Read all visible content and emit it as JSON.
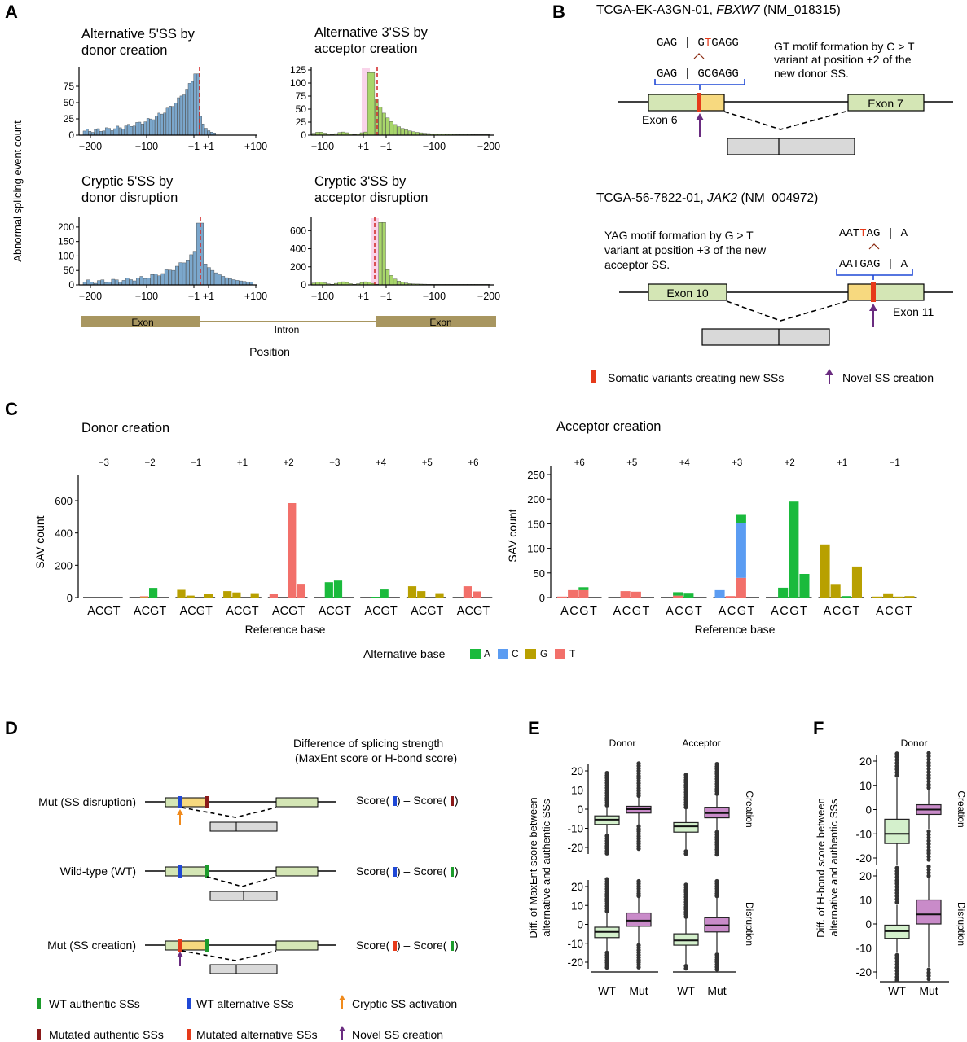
{
  "panels": {
    "A": "A",
    "B": "B",
    "C": "C",
    "D": "D",
    "E": "E",
    "F": "F"
  },
  "colors": {
    "hist_blue": "#7ba7cc",
    "hist_green": "#a8d66a",
    "pink": "#f9d4ea",
    "dash_red": "#d32f2f",
    "exon_tan": "#a89660",
    "exon_green": "#d4e6b5",
    "exon_yellow": "#f7d97f",
    "gray_box": "#d9d9d9",
    "A": "#1aba3c",
    "C": "#5b9cf2",
    "G": "#b8a000",
    "T": "#f2706a",
    "box_wt": "#d4f0cc",
    "box_mut": "#c98bc9",
    "purple": "#6a2c80",
    "orange": "#f08a1c",
    "blue": "#1f48d6",
    "green": "#1c9b2b",
    "darkred": "#8a1a1a",
    "red": "#e63a1a"
  },
  "panel_A": {
    "ylabel": "Abnormal splicing event count",
    "xlabel": "Position",
    "exon_label": "Exon",
    "intron_label": "Intron",
    "charts": [
      {
        "title1": "Alternative 5'SS by",
        "title2": "donor creation",
        "yticks": [
          "0",
          "25",
          "50",
          "75"
        ],
        "xticks": [
          "−200",
          "−100",
          "−1",
          "+1",
          "+100"
        ]
      },
      {
        "title1": "Alternative 3'SS by",
        "title2": "acceptor creation",
        "yticks": [
          "0",
          "25",
          "50",
          "75",
          "100",
          "125"
        ],
        "xticks": [
          "+100",
          "+1",
          "−1",
          "−100",
          "−200"
        ]
      },
      {
        "title1": "Cryptic 5'SS by",
        "title2": "donor disruption",
        "yticks": [
          "0",
          "50",
          "100",
          "150",
          "200"
        ],
        "xticks": [
          "−200",
          "−100",
          "−1",
          "+1",
          "+100"
        ]
      },
      {
        "title1": "Cryptic 3'SS by",
        "title2": "acceptor disruption",
        "yticks": [
          "0",
          "200",
          "400",
          "600"
        ],
        "xticks": [
          "+100",
          "+1",
          "−1",
          "−100",
          "−200"
        ]
      }
    ]
  },
  "panel_B": {
    "case1_prefix": "TCGA-EK-A3GN-01, ",
    "case1_gene": "FBXW7",
    "case1_suffix": " (NM_018315)",
    "seq1_mut_a": "GAG | G",
    "seq1_mut_b": "T",
    "seq1_mut_c": "GAGG",
    "seq1_wt": "GAG | GCGAGG",
    "note1_l1": "GT motif formation by C > T",
    "note1_l2": "variant at position +2 of the",
    "note1_l3": "new donor SS.",
    "exon6": "Exon 6",
    "exon7": "Exon 7",
    "case2_prefix": "TCGA-56-7822-01, ",
    "case2_gene": "JAK2",
    "case2_suffix": " (NM_004972)",
    "note2_l1": "YAG motif formation by G > T",
    "note2_l2": "variant at position +3 of the new",
    "note2_l3": "acceptor SS.",
    "seq2_mut_a": "AAT",
    "seq2_mut_b": "T",
    "seq2_mut_c": "AG | A",
    "seq2_wt": "AATGAG | A",
    "exon10": "Exon 10",
    "exon11": "Exon 11",
    "legend_variant": "Somatic variants creating new SSs",
    "legend_novel": "Novel SS creation"
  },
  "panel_C": {
    "donor_title": "Donor creation",
    "acceptor_title": "Acceptor creation",
    "ylabel": "SAV count",
    "xlabel": "Reference base",
    "group_label": "ACGT",
    "legend_title": "Alternative base",
    "legend": [
      "A",
      "C",
      "G",
      "T"
    ],
    "donor_yticks": [
      "0",
      "200",
      "400",
      "600"
    ],
    "acceptor_yticks": [
      "0",
      "50",
      "100",
      "150",
      "200",
      "250"
    ]
  },
  "chart_data": [
    {
      "type": "bar",
      "title": "Donor creation",
      "xlabel": "Reference base",
      "ylabel": "SAV count",
      "ylim": [
        0,
        700
      ],
      "positions": [
        "−3",
        "−2",
        "−1",
        "+1",
        "+2",
        "+3",
        "+4",
        "+5",
        "+6"
      ],
      "reference_bases": [
        "A",
        "C",
        "G",
        "T"
      ],
      "stacked_by": "Alternative base",
      "data": [
        [
          [],
          [],
          [],
          []
        ],
        [
          [],
          [
            [
              "G",
              3
            ],
            [
              "T",
              5
            ]
          ],
          [
            [
              "A",
              60
            ]
          ],
          []
        ],
        [
          [
            [
              "G",
              48
            ]
          ],
          [
            [
              "G",
              12
            ]
          ],
          [],
          [
            [
              "G",
              20
            ]
          ]
        ],
        [
          [
            [
              "G",
              40
            ]
          ],
          [
            [
              "G",
              32
            ]
          ],
          [],
          [
            [
              "G",
              22
            ]
          ]
        ],
        [
          [
            [
              "T",
              20
            ]
          ],
          [],
          [
            [
              "T",
              585
            ]
          ],
          [
            [
              "T",
              80
            ]
          ]
        ],
        [
          [],
          [
            [
              "A",
              95
            ]
          ],
          [
            [
              "A",
              105
            ]
          ],
          []
        ],
        [
          [],
          [
            [
              "A",
              5
            ]
          ],
          [
            [
              "A",
              50
            ]
          ],
          []
        ],
        [
          [
            [
              "G",
              70
            ]
          ],
          [
            [
              "G",
              40
            ]
          ],
          [],
          [
            [
              "G",
              22
            ]
          ]
        ],
        [
          [],
          [
            [
              "T",
              70
            ]
          ],
          [
            [
              "T",
              38
            ]
          ],
          []
        ]
      ]
    },
    {
      "type": "bar",
      "title": "Acceptor creation",
      "xlabel": "Reference base",
      "ylabel": "SAV count",
      "ylim": [
        0,
        250
      ],
      "positions": [
        "+6",
        "+5",
        "+4",
        "+3",
        "+2",
        "+1",
        "−1"
      ],
      "reference_bases": [
        "A",
        "C",
        "G",
        "T"
      ],
      "stacked_by": "Alternative base",
      "data": [
        [
          [
            [
              "T",
              2
            ]
          ],
          [
            [
              "T",
              15
            ]
          ],
          [
            [
              "T",
              15
            ],
            [
              "A",
              6
            ]
          ],
          []
        ],
        [
          [],
          [
            [
              "T",
              13
            ]
          ],
          [
            [
              "T",
              12
            ]
          ],
          []
        ],
        [
          [],
          [
            [
              "T",
              4
            ],
            [
              "A",
              7
            ]
          ],
          [
            [
              "A",
              8
            ]
          ],
          []
        ],
        [
          [
            [
              "C",
              15
            ]
          ],
          [
            [
              "T",
              3
            ]
          ],
          [
            [
              "T",
              40
            ],
            [
              "C",
              112
            ],
            [
              "A",
              16
            ]
          ],
          []
        ],
        [
          [],
          [
            [
              "A",
              20
            ]
          ],
          [
            [
              "A",
              195
            ]
          ],
          [
            [
              "A",
              48
            ]
          ]
        ],
        [
          [
            [
              "G",
              108
            ]
          ],
          [
            [
              "G",
              26
            ]
          ],
          [
            [
              "A",
              3
            ]
          ],
          [
            [
              "G",
              63
            ]
          ]
        ],
        [
          [
            [
              "G",
              2
            ]
          ],
          [
            [
              "G",
              7
            ]
          ],
          [
            [
              "G",
              2
            ]
          ],
          [
            [
              "G",
              3
            ]
          ]
        ]
      ]
    },
    {
      "type": "box",
      "title": "",
      "ylabel": "Diff. of MaxEnt score between alternative and authentic SSs",
      "facets_col": [
        "Donor",
        "Acceptor"
      ],
      "facets_row": [
        "Creation",
        "Disruption"
      ],
      "groups": [
        "WT",
        "Mut"
      ],
      "boxes": [
        {
          "col": "Donor",
          "row": "Creation",
          "group": "WT",
          "q1": -8,
          "median": -5.5,
          "q3": -3.5,
          "whisker_low": -13,
          "whisker_high": 1
        },
        {
          "col": "Donor",
          "row": "Creation",
          "group": "Mut",
          "q1": -2,
          "median": 0,
          "q3": 1.5,
          "whisker_low": -8,
          "whisker_high": 6
        },
        {
          "col": "Acceptor",
          "row": "Creation",
          "group": "WT",
          "q1": -12,
          "median": -9,
          "q3": -7,
          "whisker_low": -21,
          "whisker_high": 0
        },
        {
          "col": "Acceptor",
          "row": "Creation",
          "group": "Mut",
          "q1": -4.5,
          "median": -2,
          "q3": 1,
          "whisker_low": -11,
          "whisker_high": 7
        },
        {
          "col": "Donor",
          "row": "Disruption",
          "group": "WT",
          "q1": -7,
          "median": -4,
          "q3": -1.5,
          "whisker_low": -14,
          "whisker_high": 6
        },
        {
          "col": "Donor",
          "row": "Disruption",
          "group": "Mut",
          "q1": -1,
          "median": 2,
          "q3": 6,
          "whisker_low": -10,
          "whisker_high": 14
        },
        {
          "col": "Acceptor",
          "row": "Disruption",
          "group": "WT",
          "q1": -11,
          "median": -8.5,
          "q3": -5,
          "whisker_low": -21,
          "whisker_high": 3
        },
        {
          "col": "Acceptor",
          "row": "Disruption",
          "group": "Mut",
          "q1": -4,
          "median": -0.5,
          "q3": 3.5,
          "whisker_low": -15,
          "whisker_high": 14
        }
      ]
    },
    {
      "type": "box",
      "title": "",
      "ylabel": "Diff. of H-bond score between alternative and authentic SSs",
      "facets_col": [
        "Donor"
      ],
      "facets_row": [
        "Creation",
        "Disruption"
      ],
      "groups": [
        "WT",
        "Mut"
      ],
      "boxes": [
        {
          "col": "Donor",
          "row": "Creation",
          "group": "WT",
          "q1": -14,
          "median": -10,
          "q3": -4,
          "whisker_low": -23,
          "whisker_high": 13
        },
        {
          "col": "Donor",
          "row": "Creation",
          "group": "Mut",
          "q1": -2,
          "median": 0,
          "q3": 2,
          "whisker_low": -8,
          "whisker_high": 8
        },
        {
          "col": "Donor",
          "row": "Disruption",
          "group": "WT",
          "q1": -6,
          "median": -3,
          "q3": -0.5,
          "whisker_low": -12,
          "whisker_high": 8
        },
        {
          "col": "Donor",
          "row": "Disruption",
          "group": "Mut",
          "q1": 0,
          "median": 4,
          "q3": 10,
          "whisker_low": -18,
          "whisker_high": 19
        }
      ]
    }
  ],
  "panel_D": {
    "title_l1": "Difference of splicing strength",
    "title_l2": "(MaxEnt score or H-bond score)",
    "row1": "Mut (SS disruption)",
    "row2": "Wild-type (WT)",
    "row3": "Mut (SS creation)",
    "score": "Score(",
    "minus": ") – Score(",
    "close": ")",
    "legend": [
      "WT authentic SSs",
      "WT alternative SSs",
      "Cryptic SS activation",
      "Mutated authentic SSs",
      "Mutated alternative SSs",
      "Novel SS creation"
    ]
  },
  "panel_E": {
    "ylabel_l1": "Diff. of MaxEnt score between",
    "ylabel_l2": "alternative and authentic SSs",
    "col1": "Donor",
    "col2": "Acceptor",
    "row1": "Creation",
    "row2": "Disruption",
    "yticks": [
      "20",
      "10",
      "0",
      "-10",
      "-20"
    ],
    "wt": "WT",
    "mut": "Mut"
  },
  "panel_F": {
    "ylabel_l1": "Diff. of H-bond score between",
    "ylabel_l2": "alternative and authentic SSs",
    "col1": "Donor",
    "row1": "Creation",
    "row2": "Disruption",
    "yticks": [
      "20",
      "10",
      "0",
      "-10",
      "-20"
    ],
    "wt": "WT",
    "mut": "Mut"
  }
}
